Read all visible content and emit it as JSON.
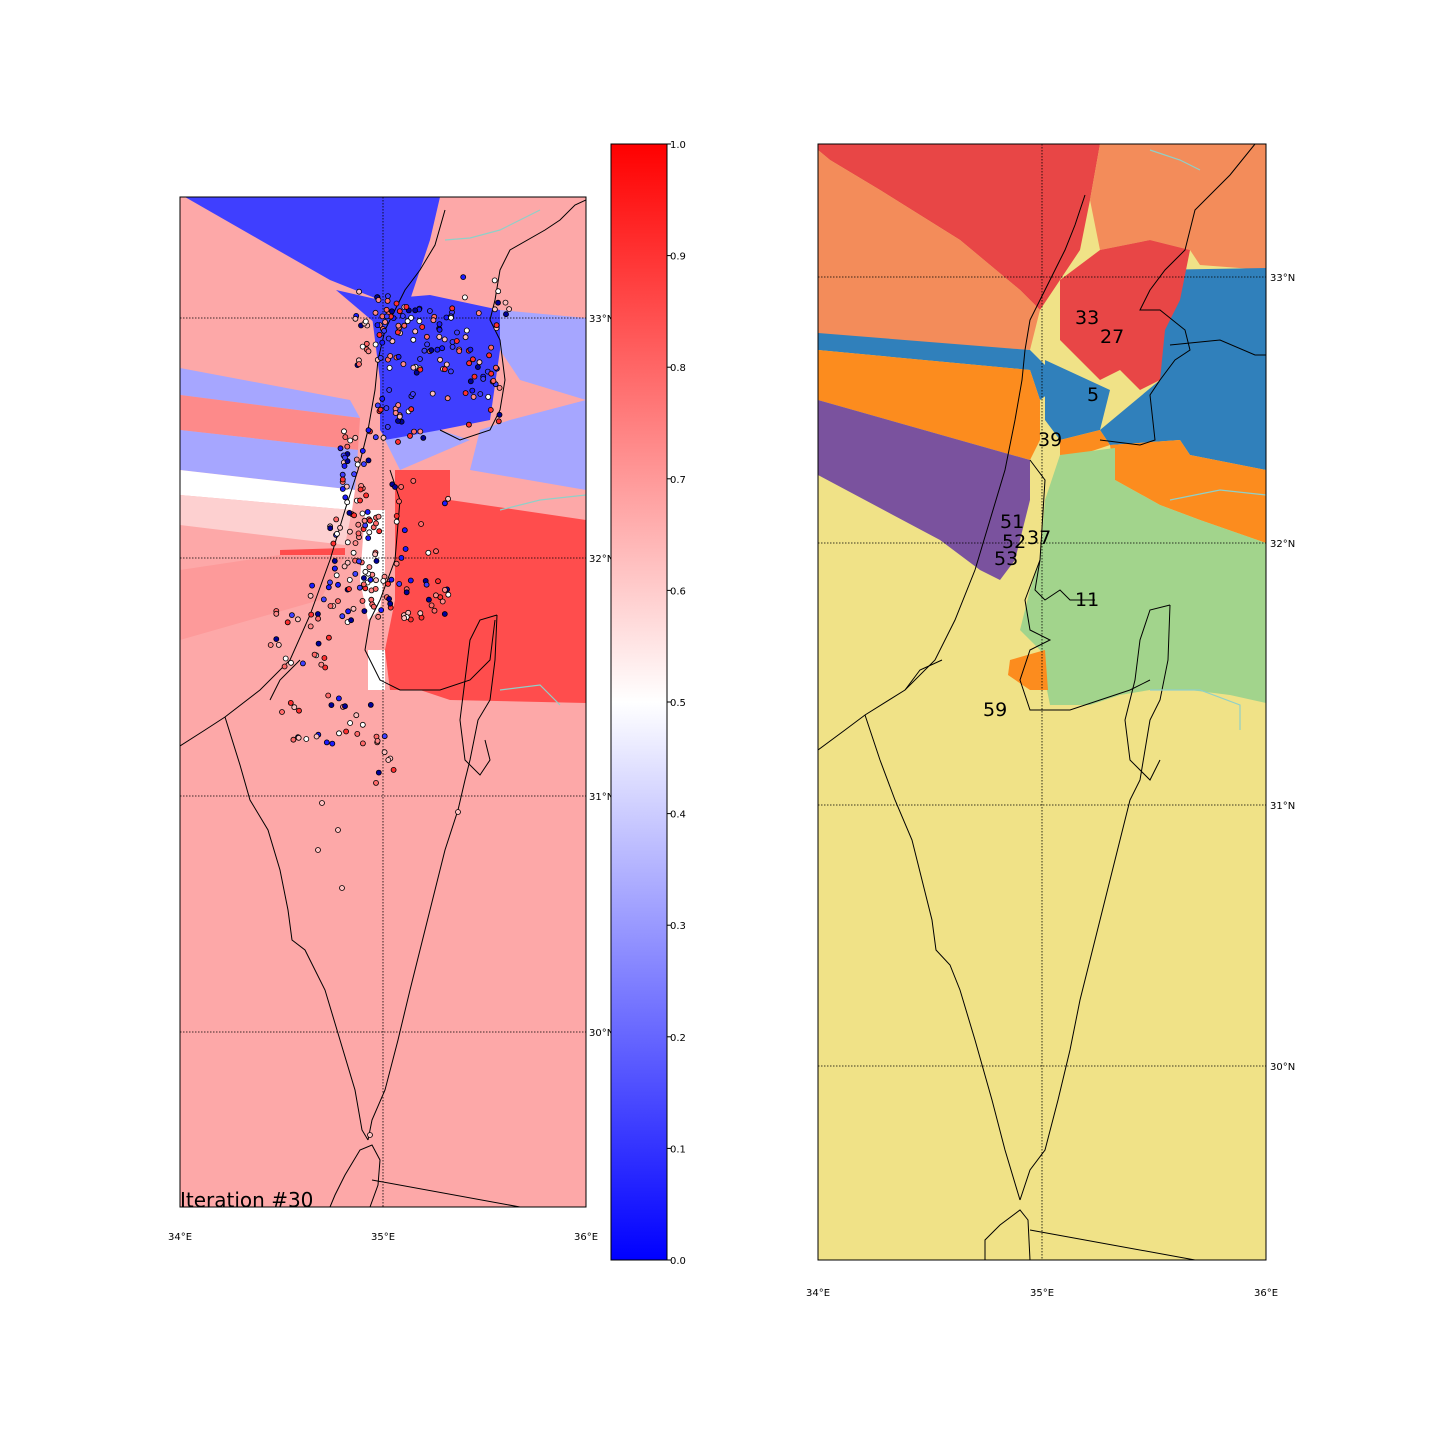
{
  "left_map": {
    "iteration_label": "Iteration #30",
    "lon_ticks": [
      "34°E",
      "35°E",
      "36°E"
    ],
    "lat_ticks": [
      "33°N",
      "32°N",
      "31°N",
      "30°N"
    ],
    "colors": {
      "background_pink": "#fda8a8",
      "strong_red": "#ff4d4d",
      "blue": "#3f3fff",
      "light_blue": "#a6a6ff",
      "pale_pink": "#fdd0d0",
      "white": "#ffffff"
    }
  },
  "colorbar": {
    "ticks": [
      "1.0",
      "0.9",
      "0.8",
      "0.7",
      "0.6",
      "0.5",
      "0.4",
      "0.3",
      "0.2",
      "0.1",
      "0.0"
    ],
    "min_color": "#0000ff",
    "mid_color": "#ffffff",
    "max_color": "#ff0000"
  },
  "right_map": {
    "lon_ticks": [
      "34°E",
      "35°E",
      "36°E"
    ],
    "lat_ticks": [
      "33°N",
      "32°N",
      "31°N",
      "30°N"
    ],
    "region_labels": [
      "33",
      "27",
      "5",
      "39",
      "51",
      "52",
      "37",
      "53",
      "11",
      "59"
    ],
    "colors": {
      "red": "#e84646",
      "orange_salmon": "#f38c5a",
      "blue": "#3080bb",
      "orange": "#fc8c1e",
      "purple": "#7a529e",
      "green": "#a2d48c",
      "yellow": "#f0e287"
    }
  }
}
